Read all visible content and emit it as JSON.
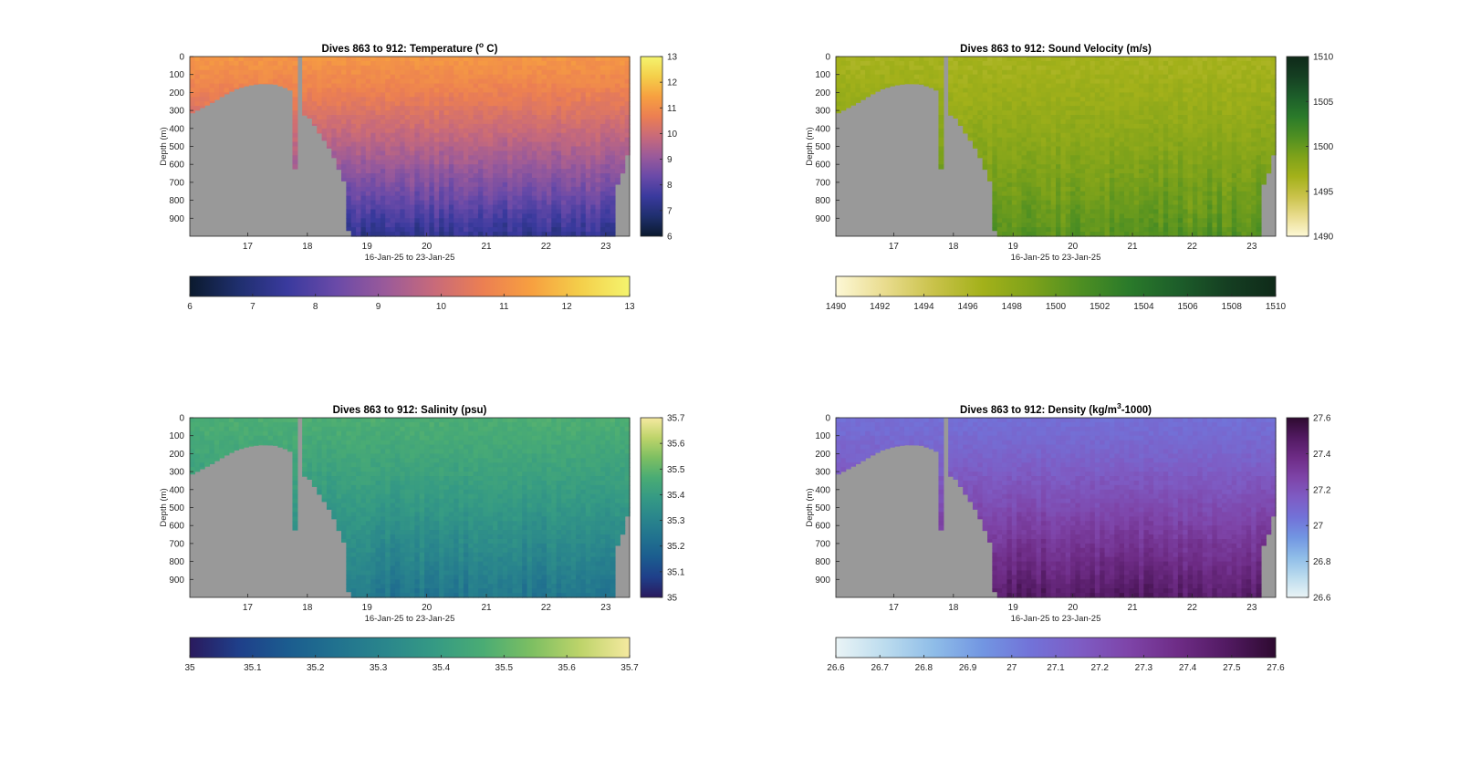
{
  "chart_data": [
    {
      "type": "heatmap",
      "id": "temperature",
      "title": "Dives 863 to 912: Temperature (",
      "title_sup": "o",
      "title_end": " C)",
      "xlabel": "16-Jan-25 to 23-Jan-25",
      "ylabel": "Depth (m)",
      "x_ticks": [
        "17",
        "18",
        "19",
        "20",
        "21",
        "22",
        "23"
      ],
      "x_tick_values": [
        17,
        18,
        19,
        20,
        21,
        22,
        23
      ],
      "xlim": [
        16.03,
        23.4
      ],
      "y_ticks": [
        "0",
        "100",
        "200",
        "300",
        "400",
        "500",
        "600",
        "700",
        "800",
        "900"
      ],
      "ylim": [
        1000,
        0
      ],
      "clim": [
        6,
        13
      ],
      "colorbar_ticks": [
        "6",
        "7",
        "8",
        "9",
        "10",
        "11",
        "12",
        "13"
      ],
      "horizontal_colorbar_ticks": [
        "6",
        "7",
        "8",
        "9",
        "10",
        "11",
        "12",
        "13"
      ],
      "surface_value": 11.2,
      "deep_value": 7.3,
      "colormap": [
        "#0b1a2e",
        "#1f2f6e",
        "#3a3a9e",
        "#6a4aa8",
        "#9a5a9a",
        "#c86a7a",
        "#ec7f52",
        "#f7a040",
        "#f4cf4a",
        "#f4f46e"
      ]
    },
    {
      "type": "heatmap",
      "id": "sound-velocity",
      "title": "Dives 863 to 912: Sound Velocity (m/s)",
      "xlabel": "16-Jan-25 to 23-Jan-25",
      "ylabel": "Depth (m)",
      "x_ticks": [
        "17",
        "18",
        "19",
        "20",
        "21",
        "22",
        "23"
      ],
      "x_tick_values": [
        17,
        18,
        19,
        20,
        21,
        22,
        23
      ],
      "xlim": [
        16.03,
        23.4
      ],
      "y_ticks": [
        "0",
        "100",
        "200",
        "300",
        "400",
        "500",
        "600",
        "700",
        "800",
        "900"
      ],
      "ylim": [
        1000,
        0
      ],
      "clim": [
        1490,
        1510
      ],
      "colorbar_ticks": [
        "1490",
        "1495",
        "1500",
        "1505",
        "1510"
      ],
      "horizontal_colorbar_ticks": [
        "1490",
        "1492",
        "1494",
        "1496",
        "1498",
        "1500",
        "1502",
        "1504",
        "1506",
        "1508",
        "1510"
      ],
      "surface_value": 1496.5,
      "deep_value": 1500.8,
      "colormap": [
        "#fdf8d6",
        "#e9dc8e",
        "#c9c24a",
        "#a3b11a",
        "#7ea21a",
        "#4e8f22",
        "#2a7a2a",
        "#1d5e2a",
        "#153f22",
        "#0f2a19"
      ]
    },
    {
      "type": "heatmap",
      "id": "salinity",
      "title": "Dives 863 to 912: Salinity (psu)",
      "xlabel": "16-Jan-25 to 23-Jan-25",
      "ylabel": "Depth (m)",
      "x_ticks": [
        "17",
        "18",
        "19",
        "20",
        "21",
        "22",
        "23"
      ],
      "x_tick_values": [
        17,
        18,
        19,
        20,
        21,
        22,
        23
      ],
      "xlim": [
        16.03,
        23.4
      ],
      "y_ticks": [
        "0",
        "100",
        "200",
        "300",
        "400",
        "500",
        "600",
        "700",
        "800",
        "900"
      ],
      "ylim": [
        1000,
        0
      ],
      "clim": [
        35,
        35.7
      ],
      "colorbar_ticks": [
        "35",
        "35.1",
        "35.2",
        "35.3",
        "35.4",
        "35.5",
        "35.6",
        "35.7"
      ],
      "horizontal_colorbar_ticks": [
        "35",
        "35.1",
        "35.2",
        "35.3",
        "35.4",
        "35.5",
        "35.6",
        "35.7"
      ],
      "surface_value": 35.47,
      "deep_value": 35.25,
      "colormap": [
        "#2a1a5e",
        "#1f3f8a",
        "#1b5c8f",
        "#21728f",
        "#2a868c",
        "#359a84",
        "#4aac74",
        "#7dbf62",
        "#bed46a",
        "#f5e9a0"
      ]
    },
    {
      "type": "heatmap",
      "id": "density",
      "title": "Dives 863 to 912: Density (kg/m",
      "title_sup": "3",
      "title_end": "-1000)",
      "xlabel": "16-Jan-25 to 23-Jan-25",
      "ylabel": "Depth (m)",
      "x_ticks": [
        "17",
        "18",
        "19",
        "20",
        "21",
        "22",
        "23"
      ],
      "x_tick_values": [
        17,
        18,
        19,
        20,
        21,
        22,
        23
      ],
      "xlim": [
        16.03,
        23.4
      ],
      "y_ticks": [
        "0",
        "100",
        "200",
        "300",
        "400",
        "500",
        "600",
        "700",
        "800",
        "900"
      ],
      "ylim": [
        1000,
        0
      ],
      "clim": [
        26.6,
        27.6
      ],
      "colorbar_ticks": [
        "26.6",
        "26.8",
        "27",
        "27.2",
        "27.4",
        "27.6"
      ],
      "horizontal_colorbar_ticks": [
        "26.6",
        "26.7",
        "26.8",
        "26.9",
        "27",
        "27.1",
        "27.2",
        "27.3",
        "27.4",
        "27.5",
        "27.6"
      ],
      "surface_value": 27.06,
      "deep_value": 27.48,
      "colormap": [
        "#eaf4f6",
        "#bcdcee",
        "#8fbde8",
        "#7296e2",
        "#7272d8",
        "#7e5cc4",
        "#7e44a8",
        "#6e2c86",
        "#521a62",
        "#2e0a30"
      ]
    }
  ],
  "shared": {
    "land_color": "#999999",
    "seafloor_depth_by_day": [
      [
        16.03,
        320
      ],
      [
        16.2,
        290
      ],
      [
        16.4,
        255
      ],
      [
        16.6,
        215
      ],
      [
        16.8,
        180
      ],
      [
        17.0,
        160
      ],
      [
        17.2,
        150
      ],
      [
        17.45,
        152
      ],
      [
        17.65,
        175
      ],
      [
        17.78,
        200
      ],
      [
        17.8,
        1000
      ],
      [
        17.92,
        1000
      ],
      [
        17.93,
        320
      ],
      [
        18.05,
        345
      ],
      [
        18.15,
        400
      ],
      [
        18.25,
        450
      ],
      [
        18.35,
        500
      ],
      [
        18.45,
        565
      ],
      [
        18.55,
        645
      ],
      [
        18.62,
        700
      ],
      [
        18.7,
        1000
      ],
      [
        23.15,
        1000
      ],
      [
        23.2,
        680
      ],
      [
        23.32,
        630
      ],
      [
        23.4,
        460
      ]
    ],
    "gap": [
      17.8,
      17.93
    ]
  }
}
